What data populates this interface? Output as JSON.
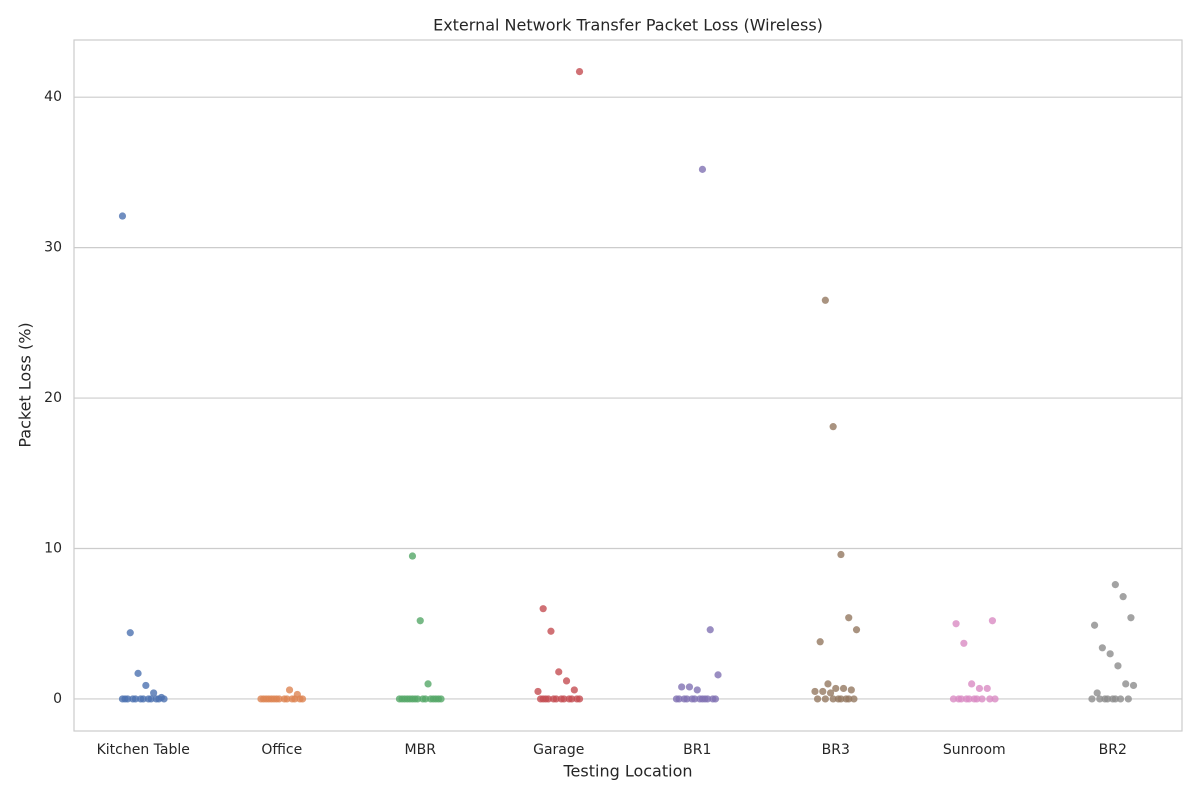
{
  "chart_data": {
    "type": "strip",
    "title": "External Network Transfer Packet Loss (Wireless)",
    "x_label": "Testing Location",
    "y_label": "Packet Loss (%)",
    "categories": [
      "Kitchen Table",
      "Office",
      "MBR",
      "Garage",
      "BR1",
      "BR3",
      "Sunroom",
      "BR2"
    ],
    "colors": [
      "#4c72b0",
      "#dd8452",
      "#55a868",
      "#c44e52",
      "#8172b3",
      "#937860",
      "#da8bc3",
      "#8c8c8c"
    ],
    "values": [
      [
        32.1,
        4.4,
        1.7,
        0.9,
        0.4,
        0.1,
        0,
        0,
        0,
        0,
        0,
        0,
        0,
        0,
        0,
        0,
        0,
        0
      ],
      [
        0.6,
        0.3,
        0,
        0,
        0,
        0,
        0,
        0,
        0,
        0,
        0,
        0,
        0,
        0,
        0,
        0
      ],
      [
        9.5,
        5.2,
        1.0,
        0,
        0,
        0,
        0,
        0,
        0,
        0,
        0,
        0,
        0,
        0,
        0,
        0,
        0,
        0
      ],
      [
        41.7,
        6.0,
        4.5,
        1.8,
        1.2,
        0.6,
        0.5,
        0,
        0,
        0,
        0,
        0,
        0,
        0,
        0,
        0,
        0,
        0,
        0
      ],
      [
        35.2,
        4.6,
        1.6,
        0.8,
        0.8,
        0.6,
        0,
        0,
        0,
        0,
        0,
        0,
        0,
        0,
        0,
        0,
        0,
        0
      ],
      [
        26.5,
        18.1,
        9.6,
        5.4,
        4.6,
        3.8,
        1.0,
        0.7,
        0.7,
        0.6,
        0.5,
        0.5,
        0.4,
        0,
        0,
        0,
        0,
        0,
        0,
        0,
        0
      ],
      [
        5.2,
        5.0,
        3.7,
        1.0,
        0.7,
        0.7,
        0,
        0,
        0,
        0,
        0,
        0,
        0,
        0,
        0,
        0
      ],
      [
        7.6,
        6.8,
        5.4,
        4.9,
        3.4,
        3.0,
        2.2,
        1.0,
        0.9,
        0.4,
        0,
        0,
        0,
        0,
        0,
        0,
        0,
        0
      ]
    ],
    "ylim": [
      -2.13,
      43.8
    ],
    "yticks": [
      0,
      10,
      20,
      30,
      40
    ],
    "grid": true
  }
}
